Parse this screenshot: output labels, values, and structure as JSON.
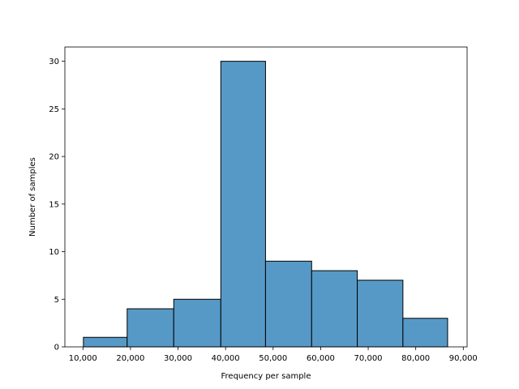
{
  "chart_data": {
    "type": "bar",
    "title": "",
    "xlabel": "Frequency per sample",
    "ylabel": "Number of samples",
    "xlim": [
      6200,
      90800
    ],
    "ylim": [
      0,
      31.5
    ],
    "grid": false,
    "bar_color": "#5799c6",
    "edge_color": "#000000",
    "bins": [
      {
        "start": 10100,
        "end": 19300,
        "count": 1
      },
      {
        "start": 19300,
        "end": 29100,
        "count": 4
      },
      {
        "start": 29100,
        "end": 39000,
        "count": 5
      },
      {
        "start": 39000,
        "end": 48400,
        "count": 30
      },
      {
        "start": 48400,
        "end": 58100,
        "count": 9
      },
      {
        "start": 58100,
        "end": 67700,
        "count": 8
      },
      {
        "start": 67700,
        "end": 77300,
        "count": 7
      },
      {
        "start": 77300,
        "end": 86700,
        "count": 3
      }
    ],
    "x_ticks": [
      {
        "value": 10000,
        "label": "10,000"
      },
      {
        "value": 20000,
        "label": "20,000"
      },
      {
        "value": 30000,
        "label": "30,000"
      },
      {
        "value": 40000,
        "label": "40,000"
      },
      {
        "value": 50000,
        "label": "50,000"
      },
      {
        "value": 60000,
        "label": "60,000"
      },
      {
        "value": 70000,
        "label": "70,000"
      },
      {
        "value": 80000,
        "label": "80,000"
      },
      {
        "value": 90000,
        "label": "90,000"
      }
    ],
    "y_ticks": [
      {
        "value": 0,
        "label": "0"
      },
      {
        "value": 5,
        "label": "5"
      },
      {
        "value": 10,
        "label": "10"
      },
      {
        "value": 15,
        "label": "15"
      },
      {
        "value": 20,
        "label": "20"
      },
      {
        "value": 25,
        "label": "25"
      },
      {
        "value": 30,
        "label": "30"
      }
    ]
  }
}
